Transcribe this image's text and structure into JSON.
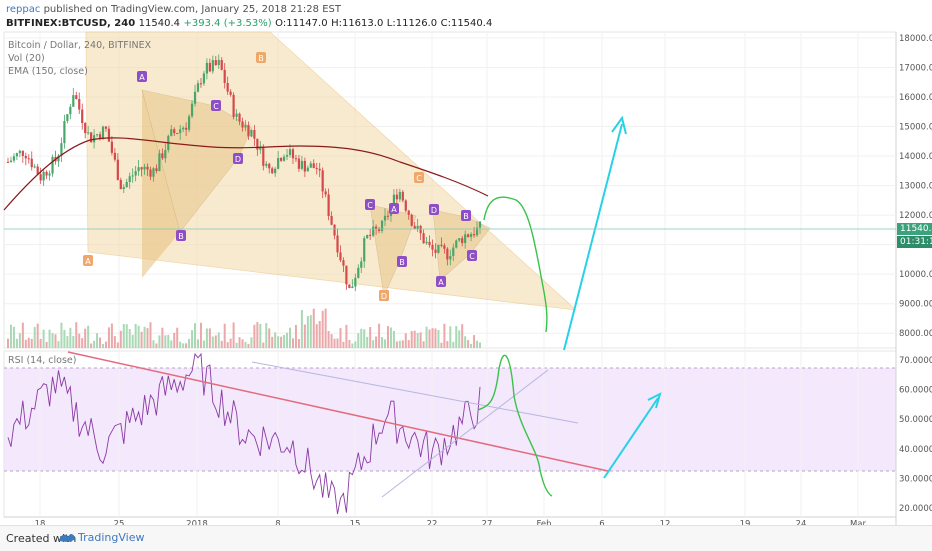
{
  "header": {
    "user": "reppac",
    "published": "published on TradingView.com, January 25, 2018 21:28 EST",
    "symbol": "BITFINEX:BTCUSD, 240",
    "last": "11540.4",
    "change": "+393.4 (+3.53%)",
    "open_label": "O:",
    "open": "11147.0",
    "high_label": "H:",
    "high": "11613.0",
    "low_label": "L:",
    "low": "11126.0",
    "close_label": "C:",
    "close": "11540.4"
  },
  "legend": {
    "title": "Bitcoin / Dollar, 240, BITFINEX",
    "vol": "Vol (20)",
    "ema": "EMA (150, close)",
    "rsi": "RSI (14, close)"
  },
  "price_tag": {
    "value": "11540.4",
    "countdown": "01:31:17"
  },
  "footer": {
    "created": "Created with",
    "brand": "TradingView"
  },
  "chart_data": {
    "type": "line",
    "instrument": "BITFINEX:BTCUSD, 240",
    "price_ticks": [
      "8000.0000",
      "9000.0000",
      "10000.0000",
      "11000.0000",
      "12000.0000",
      "13000.0000",
      "14000.0000",
      "15000.0000",
      "16000.0000",
      "17000.0000",
      "18000.0000"
    ],
    "price_ylim": [
      7500,
      18200
    ],
    "rsi_ticks": [
      "20.0000",
      "30.0000",
      "40.0000",
      "50.0000",
      "60.0000",
      "70.0000"
    ],
    "rsi_ylim": [
      17,
      73
    ],
    "rsi_band": [
      30,
      70
    ],
    "x_ticks": [
      "18",
      "25",
      "2018",
      "8",
      "15",
      "22",
      "27",
      "Feb",
      "6",
      "12",
      "19",
      "24",
      "Mar"
    ],
    "price_series_approx": [
      {
        "x": "Dec 22",
        "y": 13800
      },
      {
        "x": "Dec 23",
        "y": 14200
      },
      {
        "x": "Dec 24",
        "y": 13300
      },
      {
        "x": "Dec 25",
        "y": 13900
      },
      {
        "x": "Dec 26",
        "y": 16200
      },
      {
        "x": "Dec 28",
        "y": 14600
      },
      {
        "x": "Dec 29",
        "y": 14900
      },
      {
        "x": "Dec 30",
        "y": 12900
      },
      {
        "x": "Dec 31",
        "y": 13600
      },
      {
        "x": "Jan 1",
        "y": 13500
      },
      {
        "x": "Jan 2",
        "y": 14700
      },
      {
        "x": "Jan 4",
        "y": 15100
      },
      {
        "x": "Jan 5",
        "y": 16900
      },
      {
        "x": "Jan 6",
        "y": 17100
      },
      {
        "x": "Jan 8",
        "y": 15300
      },
      {
        "x": "Jan 10",
        "y": 14800
      },
      {
        "x": "Jan 11",
        "y": 13500
      },
      {
        "x": "Jan 13",
        "y": 14200
      },
      {
        "x": "Jan 14",
        "y": 13700
      },
      {
        "x": "Jan 15",
        "y": 13600
      },
      {
        "x": "Jan 16",
        "y": 11500
      },
      {
        "x": "Jan 17",
        "y": 9400
      },
      {
        "x": "Jan 18",
        "y": 11200
      },
      {
        "x": "Jan 19",
        "y": 11600
      },
      {
        "x": "Jan 20",
        "y": 12900
      },
      {
        "x": "Jan 21",
        "y": 11600
      },
      {
        "x": "Jan 22",
        "y": 10800
      },
      {
        "x": "Jan 23",
        "y": 10700
      },
      {
        "x": "Jan 24",
        "y": 11300
      },
      {
        "x": "Jan 25",
        "y": 11540
      }
    ],
    "rsi_series_approx": [
      {
        "x": "Dec 22",
        "y": 45
      },
      {
        "x": "Dec 26",
        "y": 62
      },
      {
        "x": "Dec 30",
        "y": 40
      },
      {
        "x": "Jan 2",
        "y": 55
      },
      {
        "x": "Jan 6",
        "y": 68
      },
      {
        "x": "Jan 10",
        "y": 45
      },
      {
        "x": "Jan 14",
        "y": 42
      },
      {
        "x": "Jan 17",
        "y": 19
      },
      {
        "x": "Jan 20",
        "y": 52
      },
      {
        "x": "Jan 22",
        "y": 38
      },
      {
        "x": "Jan 25",
        "y": 55
      }
    ],
    "pattern_labels": [
      "A",
      "B",
      "C",
      "D",
      "A",
      "B",
      "C",
      "D",
      "A",
      "B",
      "C",
      "D",
      "A",
      "B",
      "C",
      "D"
    ],
    "annotations": [
      "descending triangle",
      "projected move up",
      "projected RSI breakout"
    ]
  }
}
